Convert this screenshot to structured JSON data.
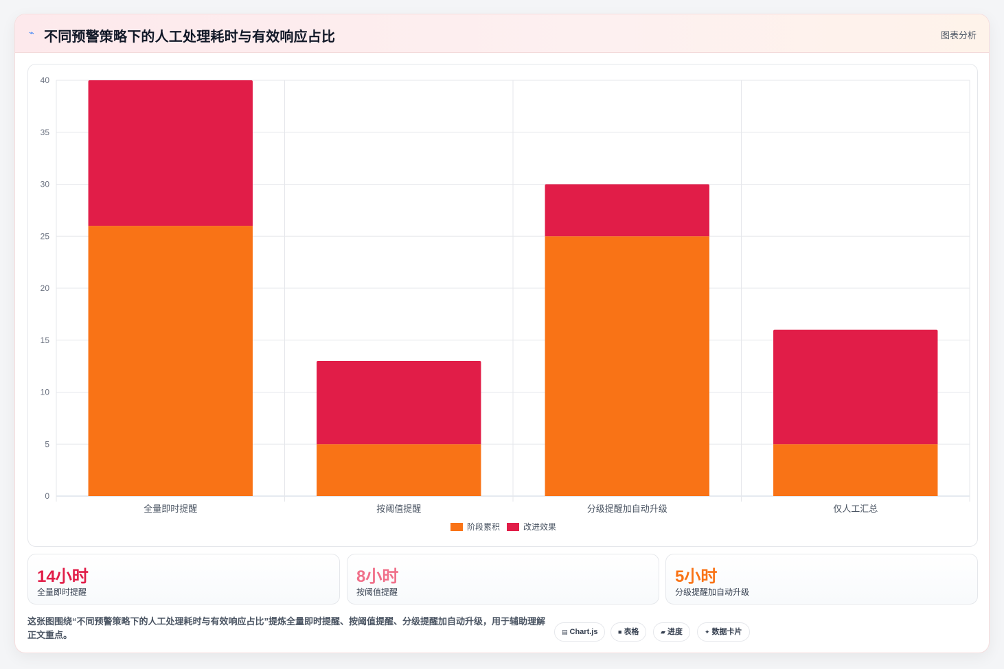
{
  "header": {
    "icon": "chart-line-icon",
    "title": "不同预警策略下的人工处理耗时与有效响应占比",
    "tag": "图表分析"
  },
  "chart_data": {
    "type": "bar",
    "stacked": true,
    "categories": [
      "全量即时提醒",
      "按阈值提醒",
      "分级提醒加自动升级",
      "仅人工汇总"
    ],
    "series": [
      {
        "name": "阶段累积",
        "color": "#f97316",
        "values": [
          26,
          5,
          25,
          5
        ]
      },
      {
        "name": "改进效果",
        "color": "#e11d48",
        "values": [
          14,
          8,
          5,
          11
        ]
      }
    ],
    "ylim": [
      0,
      40
    ],
    "yticks": [
      0,
      5,
      10,
      15,
      20,
      25,
      30,
      35,
      40
    ],
    "grid": true,
    "legend": "bottom"
  },
  "stats": [
    {
      "value": "14小时",
      "label": "全量即时提醒",
      "color": "#e11d48"
    },
    {
      "value": "8小时",
      "label": "按阈值提醒",
      "color": "#f0708a"
    },
    {
      "value": "5小时",
      "label": "分级提醒加自动升级",
      "color": "#f97316"
    }
  ],
  "footer": {
    "text": "这张图围绕“不同预警策略下的人工处理耗时与有效响应占比”提炼全量即时提醒、按阈值提醒、分级提醒加自动升级，用于辅助理解正文重点。",
    "chips": [
      {
        "icon": "table-icon",
        "glyph": "▤",
        "label": "Chart.js"
      },
      {
        "icon": "grid-icon",
        "glyph": "■",
        "label": "表格"
      },
      {
        "icon": "progress-icon",
        "glyph": "▰",
        "label": "进度"
      },
      {
        "icon": "sparkle-icon",
        "glyph": "✦",
        "label": "数据卡片"
      }
    ]
  }
}
